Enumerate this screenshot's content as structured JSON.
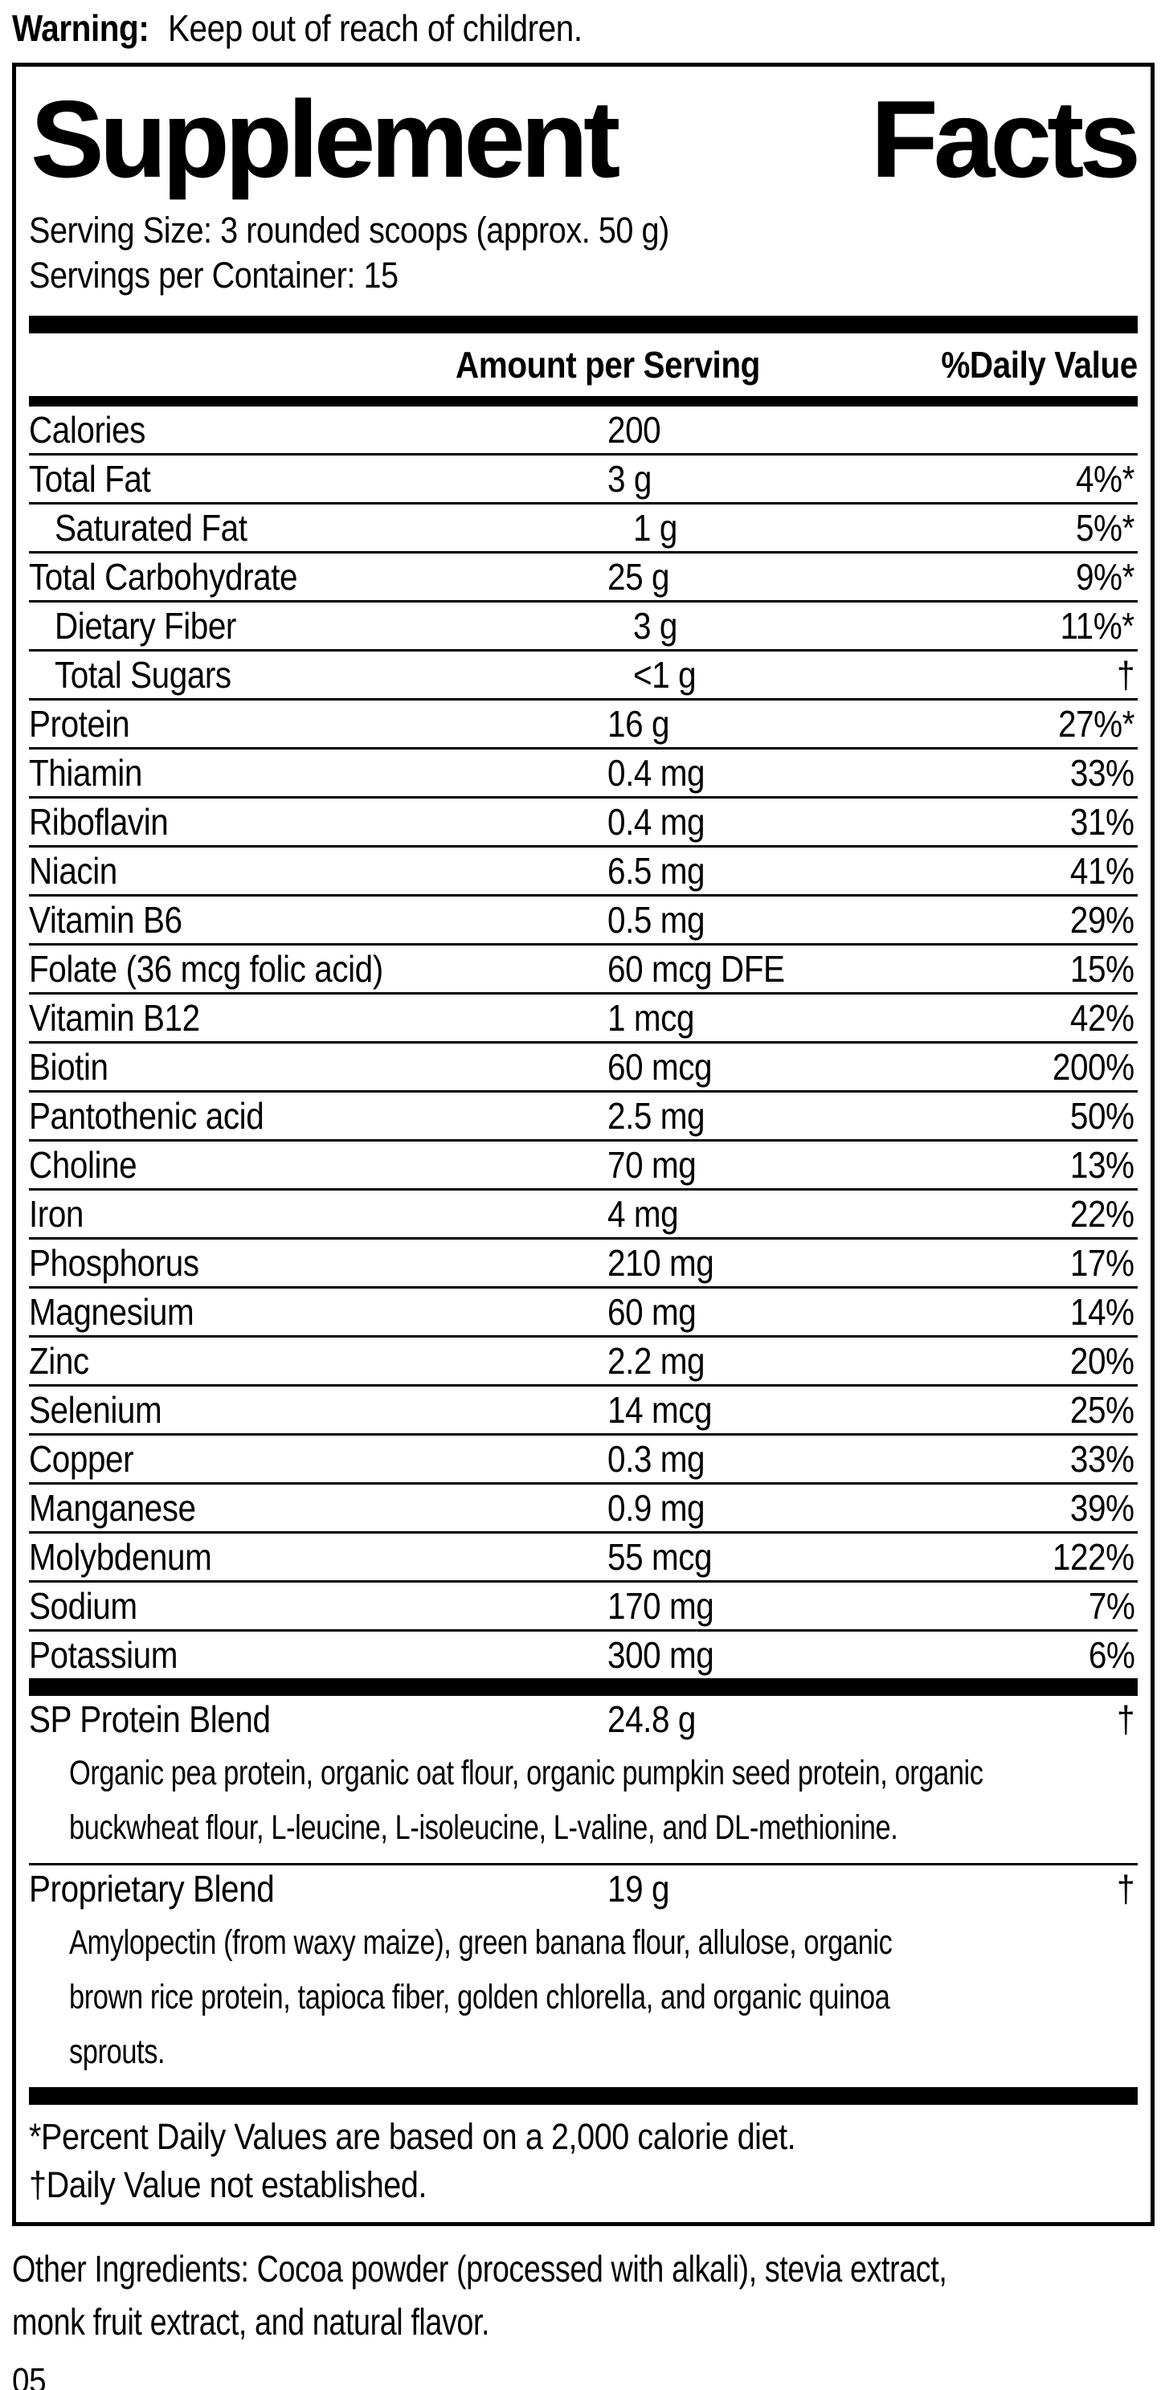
{
  "warning": {
    "label": "Warning:",
    "text": " Keep out of reach of children."
  },
  "panel": {
    "title_word1": "Supplement",
    "title_word2": "Facts",
    "serving_size": "Serving Size: 3 rounded scoops (approx. 50 g)",
    "servings_per_container": "Servings per Container: 15",
    "col_amount": "Amount per Serving",
    "col_dv": "%Daily Value",
    "rows": [
      {
        "name": "Calories",
        "amount": "200",
        "dv": ""
      },
      {
        "name": "Total Fat",
        "amount": "3 g",
        "dv": "4%*"
      },
      {
        "name": "Saturated Fat",
        "amount": "1 g",
        "dv": "5%*"
      },
      {
        "name": "Total Carbohydrate",
        "amount": "25 g",
        "dv": "9%*"
      },
      {
        "name": "Dietary Fiber",
        "amount": "3 g",
        "dv": "11%*"
      },
      {
        "name": "Total Sugars",
        "amount": "<1 g",
        "dv": "†"
      },
      {
        "name": "Protein",
        "amount": "16 g",
        "dv": "27%*"
      },
      {
        "name": "Thiamin",
        "amount": "0.4 mg",
        "dv": "33%"
      },
      {
        "name": "Riboflavin",
        "amount": "0.4 mg",
        "dv": "31%"
      },
      {
        "name": "Niacin",
        "amount": "6.5 mg",
        "dv": "41%"
      },
      {
        "name": "Vitamin B6",
        "amount": "0.5 mg",
        "dv": "29%"
      },
      {
        "name": "Folate (36 mcg folic acid)",
        "amount": "60 mcg DFE",
        "dv": "15%"
      },
      {
        "name": "Vitamin B12",
        "amount": "1 mcg",
        "dv": "42%"
      },
      {
        "name": "Biotin",
        "amount": "60 mcg",
        "dv": "200%"
      },
      {
        "name": "Pantothenic acid",
        "amount": "2.5 mg",
        "dv": "50%"
      },
      {
        "name": "Choline",
        "amount": "70 mg",
        "dv": "13%"
      },
      {
        "name": "Iron",
        "amount": "4 mg",
        "dv": "22%"
      },
      {
        "name": "Phosphorus",
        "amount": "210 mg",
        "dv": "17%"
      },
      {
        "name": "Magnesium",
        "amount": "60 mg",
        "dv": "14%"
      },
      {
        "name": "Zinc",
        "amount": "2.2 mg",
        "dv": "20%"
      },
      {
        "name": "Selenium",
        "amount": "14 mcg",
        "dv": "25%"
      },
      {
        "name": "Copper",
        "amount": "0.3 mg",
        "dv": "33%"
      },
      {
        "name": "Manganese",
        "amount": "0.9 mg",
        "dv": "39%"
      },
      {
        "name": "Molybdenum",
        "amount": "55 mcg",
        "dv": "122%"
      },
      {
        "name": "Sodium",
        "amount": "170 mg",
        "dv": "7%"
      },
      {
        "name": "Potassium",
        "amount": "300 mg",
        "dv": "6%"
      }
    ],
    "blends": [
      {
        "name": "SP Protein Blend",
        "amount": "24.8 g",
        "dv": "†",
        "desc_lines": [
          "Organic pea protein, organic oat flour, organic pumpkin seed protein, organic",
          "buckwheat flour, L-leucine, L-isoleucine, L-valine, and DL-methionine."
        ]
      },
      {
        "name": "Proprietary Blend",
        "amount": "19 g",
        "dv": "†",
        "desc_lines": [
          "Amylopectin (from waxy maize), green banana flour, allulose, organic",
          "brown rice protein, tapioca fiber, golden chlorella, and organic quinoa",
          "sprouts."
        ]
      }
    ],
    "footnotes": [
      "*Percent Daily Values are based on a 2,000 calorie diet.",
      "†Daily Value not established."
    ]
  },
  "other_ingredients_lines": [
    "Other Ingredients: Cocoa powder (processed with alkali), stevia extract,",
    "monk fruit extract, and natural flavor."
  ],
  "page_number": "05",
  "colors": {
    "ink": "#000000",
    "paper": "#ffffff"
  }
}
